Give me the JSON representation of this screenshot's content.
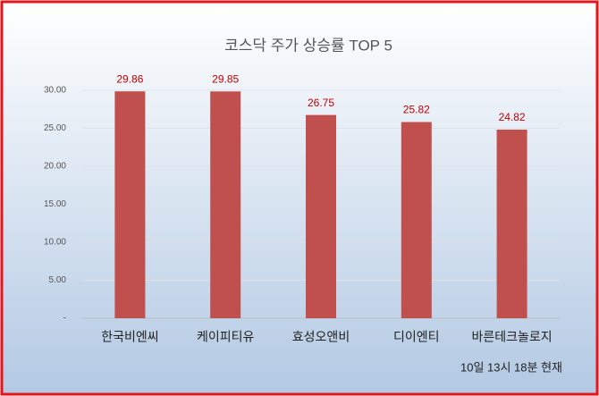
{
  "chart_data": {
    "type": "bar",
    "title": "코스닥 주가 상승률 TOP 5",
    "categories": [
      "한국비엔씨",
      "케이피티유",
      "효성오앤비",
      "디이엔티",
      "바른테크놀로지"
    ],
    "values": [
      29.86,
      29.85,
      26.75,
      25.82,
      24.82
    ],
    "color": "#c0504d",
    "ylim": [
      0,
      30
    ],
    "yticks": [
      {
        "value": 0,
        "label": "-"
      },
      {
        "value": 5,
        "label": "5.00"
      },
      {
        "value": 10,
        "label": "10.00"
      },
      {
        "value": 15,
        "label": "15.00"
      },
      {
        "value": 20,
        "label": "20.00"
      },
      {
        "value": 25,
        "label": "25.00"
      },
      {
        "value": 30,
        "label": "30.00"
      }
    ],
    "grid": true,
    "annotation": "10일  13시  18분 현재"
  }
}
